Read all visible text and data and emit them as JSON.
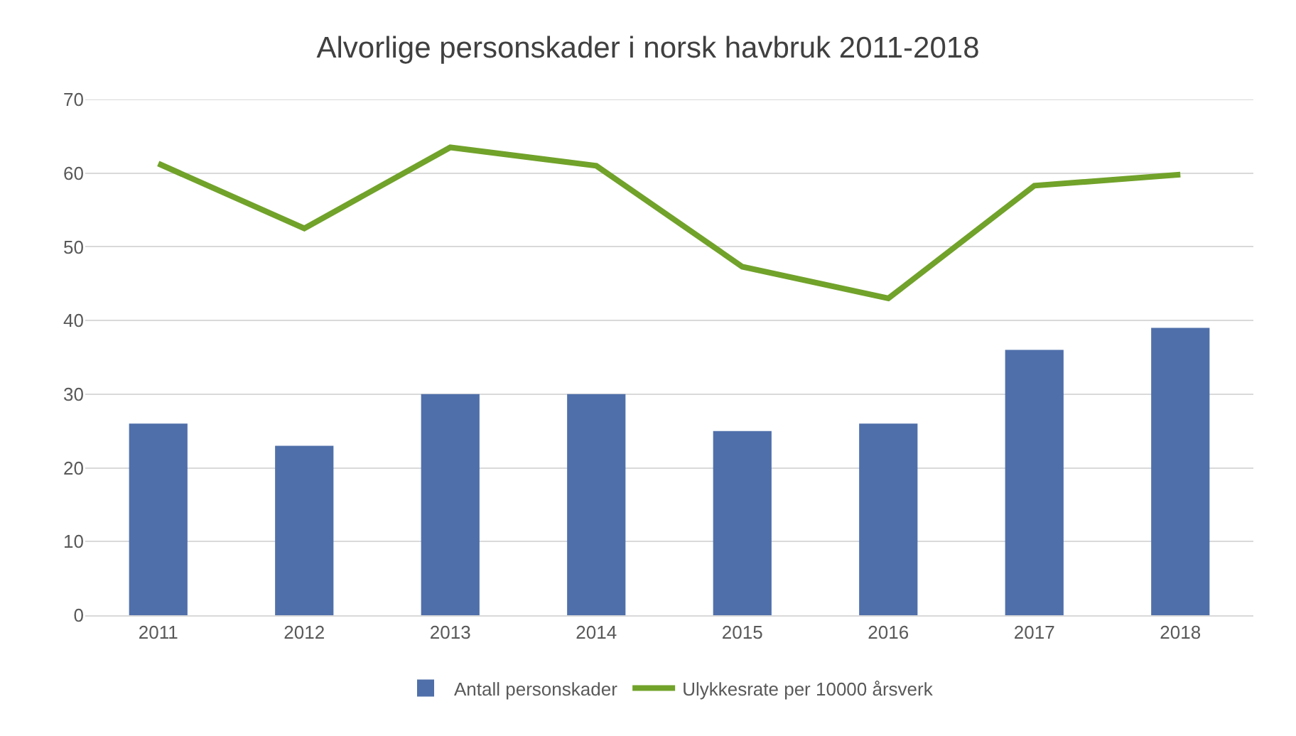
{
  "chart_data": {
    "type": "bar",
    "title": "Alvorlige personskader i norsk havbruk 2011-2018",
    "categories": [
      "2011",
      "2012",
      "2013",
      "2014",
      "2015",
      "2016",
      "2017",
      "2018"
    ],
    "series": [
      {
        "name": "Antall personskader",
        "color": "#4f6faa",
        "values": [
          26,
          23,
          30,
          30,
          25,
          26,
          36,
          39
        ]
      },
      {
        "name": "Ulykkesrate per 10000 årsverk",
        "type": "line",
        "color": "#71a22a",
        "values": [
          61.3,
          52.5,
          63.5,
          61,
          47.3,
          43,
          58.3,
          59.8
        ]
      }
    ],
    "ylim": [
      0,
      70
    ],
    "yticks": [
      0,
      10,
      20,
      30,
      40,
      50,
      60,
      70
    ],
    "grid": "y",
    "legend": "bottom",
    "marker": "none"
  }
}
